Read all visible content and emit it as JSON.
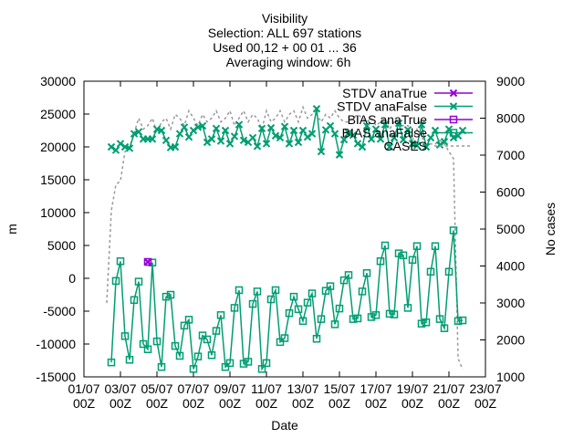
{
  "chart_data": {
    "type": "line",
    "title": [
      "Visibility",
      "Selection: ALL    697 stations",
      "Used 00,12 + 00 01 ... 36",
      "Averaging window:  6h"
    ],
    "xlabel": "Date",
    "ylabel": "m",
    "y2label": "No cases",
    "ylim": [
      -15000,
      30000
    ],
    "y2lim": [
      1000,
      9000
    ],
    "yticks": [
      "30000",
      "25000",
      "20000",
      "15000",
      "10000",
      "5000",
      "0",
      "-5000",
      "-10000",
      "-15000"
    ],
    "y2ticks": [
      "9000",
      "8000",
      "7000",
      "6000",
      "5000",
      "4000",
      "3000",
      "2000",
      "1000"
    ],
    "xticks": [
      {
        "top": "01/07",
        "bottom": "00Z"
      },
      {
        "top": "03/07",
        "bottom": "00Z"
      },
      {
        "top": "05/07",
        "bottom": "00Z"
      },
      {
        "top": "07/07",
        "bottom": "00Z"
      },
      {
        "top": "09/07",
        "bottom": "00Z"
      },
      {
        "top": "11/07",
        "bottom": "00Z"
      },
      {
        "top": "13/07",
        "bottom": "00Z"
      },
      {
        "top": "15/07",
        "bottom": "00Z"
      },
      {
        "top": "17/07",
        "bottom": "00Z"
      },
      {
        "top": "19/07",
        "bottom": "00Z"
      },
      {
        "top": "21/07",
        "bottom": "00Z"
      },
      {
        "top": "23/07",
        "bottom": "00Z"
      }
    ],
    "x_days": [
      1,
      23
    ],
    "legend_position": "top-right",
    "grid": false,
    "series": [
      {
        "name": "STDV anaTrue",
        "color": "#9400d3",
        "marker": "x",
        "axis": "y1",
        "x": [
          4.5
        ],
        "values": [
          2500
        ]
      },
      {
        "name": "STDV anaFalse",
        "color": "#009e73",
        "marker": "x",
        "axis": "y1",
        "x": [
          2.5,
          2.75,
          3.0,
          3.25,
          3.5,
          3.75,
          4.0,
          4.25,
          4.5,
          4.75,
          5.0,
          5.25,
          5.5,
          5.75,
          6.0,
          6.25,
          6.5,
          6.75,
          7.0,
          7.25,
          7.5,
          7.75,
          8.0,
          8.25,
          8.5,
          8.75,
          9.0,
          9.25,
          9.5,
          9.75,
          10.0,
          10.25,
          10.5,
          10.75,
          11.0,
          11.25,
          11.5,
          11.75,
          12.0,
          12.25,
          12.5,
          12.75,
          13.0,
          13.25,
          13.5,
          13.75,
          14.0,
          14.25,
          14.5,
          14.75,
          15.0,
          15.25,
          15.5,
          15.75,
          16.0,
          16.25,
          16.5,
          16.75,
          17.0,
          17.25,
          17.5,
          17.75,
          18.0,
          18.25,
          18.5,
          18.75,
          19.0,
          19.25,
          19.5,
          19.75,
          20.0,
          20.25,
          20.5,
          20.75,
          21.0,
          21.25,
          21.5,
          21.75
        ],
        "values": [
          20000,
          19500,
          20500,
          20000,
          19800,
          22000,
          22300,
          21200,
          21200,
          21200,
          22700,
          22500,
          21000,
          19900,
          20000,
          22000,
          23000,
          21500,
          22500,
          23000,
          23200,
          20700,
          21200,
          22800,
          20900,
          22500,
          20500,
          21600,
          23400,
          21000,
          20700,
          21400,
          20100,
          22800,
          20500,
          22900,
          21700,
          21400,
          23100,
          20500,
          22500,
          20700,
          22500,
          21500,
          22000,
          25800,
          19300,
          22600,
          23200,
          22000,
          18800,
          21100,
          22100,
          21800,
          20500,
          20000,
          23200,
          21200,
          22700,
          21200,
          23400,
          20000,
          21400,
          23600,
          21100,
          22600,
          20500,
          20200,
          23400,
          20000,
          21400,
          22500,
          20300,
          20800,
          22700,
          21400,
          21700,
          22500
        ]
      },
      {
        "name": "BIAS anaTrue",
        "color": "#9400d3",
        "marker": "square",
        "axis": "y1",
        "x": [
          4.5
        ],
        "values": [
          2500
        ]
      },
      {
        "name": "BIAS anaFalse",
        "color": "#009e73",
        "marker": "square",
        "axis": "y1",
        "x": [
          2.5,
          2.75,
          3.0,
          3.25,
          3.5,
          3.75,
          4.0,
          4.25,
          4.5,
          4.75,
          5.0,
          5.25,
          5.5,
          5.75,
          6.0,
          6.25,
          6.5,
          6.75,
          7.0,
          7.25,
          7.5,
          7.75,
          8.0,
          8.25,
          8.5,
          8.75,
          9.0,
          9.25,
          9.5,
          9.75,
          10.0,
          10.25,
          10.5,
          10.75,
          11.0,
          11.25,
          11.5,
          11.75,
          12.0,
          12.25,
          12.5,
          12.75,
          13.0,
          13.25,
          13.5,
          13.75,
          14.0,
          14.25,
          14.5,
          14.75,
          15.0,
          15.25,
          15.5,
          15.75,
          16.0,
          16.25,
          16.5,
          16.75,
          17.0,
          17.25,
          17.5,
          17.75,
          18.0,
          18.25,
          18.5,
          18.75,
          19.0,
          19.25,
          19.5,
          19.75,
          20.0,
          20.25,
          20.5,
          20.75,
          21.0,
          21.25,
          21.5,
          21.75
        ],
        "values": [
          -12800,
          -400,
          2600,
          -8800,
          -12400,
          -3300,
          -500,
          -10000,
          -10800,
          2400,
          -9600,
          -13500,
          -2800,
          -2500,
          -10300,
          -11800,
          -7200,
          -6300,
          -13800,
          -11900,
          -8700,
          -9300,
          -11700,
          -8000,
          -5600,
          -13500,
          -12900,
          -4500,
          -1800,
          -13000,
          -12700,
          -3900,
          -2000,
          -13800,
          -12900,
          -3200,
          -1800,
          -9700,
          -9100,
          -5300,
          -2800,
          -4700,
          -6500,
          -3700,
          -2300,
          -9200,
          -6200,
          -1900,
          -1200,
          -7000,
          -4600,
          -300,
          500,
          -6200,
          -6100,
          -2000,
          800,
          -5900,
          -5600,
          2600,
          5000,
          -5400,
          -5500,
          3800,
          3500,
          -4500,
          2800,
          4900,
          -6900,
          -6700,
          1000,
          4900,
          -6200,
          -7600,
          1000,
          7300,
          -6500,
          -6400
        ]
      },
      {
        "name": "CASES",
        "color": "#999999",
        "marker": "none",
        "axis": "y2",
        "dashed": true,
        "x": [
          2.25,
          2.5,
          2.75,
          3.0,
          3.25,
          3.5,
          3.75,
          4.0,
          4.25,
          4.5,
          4.75,
          5.0,
          5.25,
          5.5,
          5.75,
          6.0,
          6.25,
          6.5,
          6.75,
          7.0,
          7.25,
          7.5,
          7.75,
          8.0,
          8.25,
          8.5,
          8.75,
          9.0,
          9.25,
          9.5,
          9.75,
          10.0,
          10.25,
          10.5,
          10.75,
          11.0,
          11.25,
          11.5,
          11.75,
          12.0,
          12.25,
          12.5,
          12.75,
          13.0,
          13.25,
          13.5,
          13.75,
          14.0,
          14.25,
          14.5,
          14.75,
          15.0,
          15.25,
          15.5,
          15.75,
          16.0,
          16.25,
          16.5,
          16.75,
          17.0,
          17.25,
          17.5,
          17.75,
          18.0,
          18.25,
          18.5,
          18.75,
          19.0,
          19.25,
          19.5,
          19.75,
          20.0,
          20.25,
          20.5,
          20.75,
          21.0,
          21.25,
          21.5,
          21.75
        ],
        "values": [
          3000,
          5500,
          6200,
          6300,
          7100,
          7200,
          7600,
          8000,
          7700,
          7800,
          8000,
          7600,
          7900,
          8000,
          7700,
          8100,
          8000,
          7800,
          8200,
          8000,
          7800,
          8100,
          7900,
          8000,
          8200,
          7900,
          8000,
          8200,
          7800,
          8000,
          8200,
          7900,
          8100,
          8000,
          7700,
          8200,
          7900,
          8000,
          8200,
          7900,
          8100,
          8200,
          7900,
          8300,
          8000,
          8100,
          8100,
          7900,
          8100,
          8000,
          8200,
          8000,
          7900,
          7900,
          8000,
          8100,
          8000,
          7900,
          8000,
          7800,
          7900,
          8000,
          7700,
          7900,
          7800,
          7800,
          7800,
          7400,
          7700,
          7500,
          7300,
          7300,
          7300,
          7400,
          7300,
          7100,
          6900,
          1500,
          1200
        ]
      }
    ]
  }
}
